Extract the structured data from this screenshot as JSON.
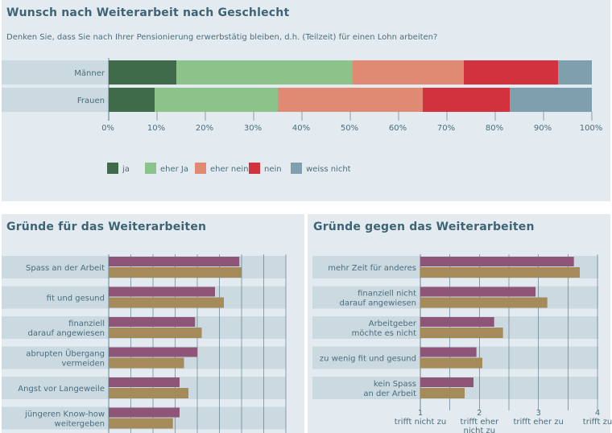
{
  "top": {
    "title": "Wunsch nach Weiterarbeit nach Geschlecht",
    "subtitle": "Denken Sie, dass Sie nach Ihrer Pensionierung erwerbstätig bleiben, d.h. (Teilzeit) für einen Lohn arbeiten?"
  },
  "left": {
    "title": "Gründe für das Weiterarbeiten"
  },
  "right": {
    "title": "Gründe gegen das Weiterarbeiten"
  },
  "colors": {
    "ja": "#3f6b4a",
    "eher_ja": "#8cc38a",
    "eher_nein": "#e08a73",
    "nein": "#d2313e",
    "weiss_nicht": "#7d9fae",
    "purple": "#8e5578",
    "gold": "#a58a5a",
    "band": "#cbd9e1",
    "axis": "#4a6d7c"
  },
  "chart_data": [
    {
      "type": "bar",
      "orientation": "horizontal",
      "stacked": true,
      "title": "Wunsch nach Weiterarbeit nach Geschlecht",
      "categories": [
        "Männer",
        "Frauen"
      ],
      "series": [
        {
          "name": "ja",
          "values": [
            14,
            9.5
          ]
        },
        {
          "name": "eher Ja",
          "values": [
            36.5,
            25.5
          ]
        },
        {
          "name": "eher nein",
          "values": [
            23,
            30
          ]
        },
        {
          "name": "nein",
          "values": [
            19.5,
            18
          ]
        },
        {
          "name": "weiss nicht",
          "values": [
            7,
            17
          ]
        }
      ],
      "x_ticks": [
        "0%",
        "10%",
        "20%",
        "30%",
        "40%",
        "50%",
        "60%",
        "70%",
        "80%",
        "90%",
        "100%"
      ],
      "xlim": [
        0,
        100
      ],
      "legend_position": "bottom"
    },
    {
      "type": "bar",
      "orientation": "horizontal",
      "title": "Gründe für das Weiterarbeiten",
      "categories": [
        "Spass an der Arbeit",
        "fit und gesund",
        "finanziell darauf angewiesen",
        "abrupten Übergang vermeiden",
        "Angst vor Langeweile",
        "jüngeren Know-how weitergeben"
      ],
      "category_labels": [
        [
          "Spass an der Arbeit"
        ],
        [
          "fit und gesund"
        ],
        [
          "finanziell",
          "darauf angewiesen"
        ],
        [
          "abrupten Übergang",
          "vermeiden"
        ],
        [
          "Angst vor Langeweile"
        ],
        [
          "jüngeren Know-how",
          "weitergeben"
        ]
      ],
      "series": [
        {
          "values": [
            3.95,
            3.4,
            2.95,
            3.0,
            2.6,
            2.6
          ]
        },
        {
          "values": [
            4.0,
            3.6,
            3.1,
            2.7,
            2.8,
            2.45
          ]
        }
      ],
      "xlim": [
        1,
        5
      ]
    },
    {
      "type": "bar",
      "orientation": "horizontal",
      "title": "Gründe gegen das Weiterarbeiten",
      "categories": [
        "mehr Zeit für anderes",
        "finanziell nicht darauf angewiesen",
        "Arbeitgeber möchte es nicht",
        "zu wenig fit und gesund",
        "kein Spass an der Arbeit"
      ],
      "category_labels": [
        [
          "mehr Zeit für anderes"
        ],
        [
          "finanziell nicht",
          "darauf angewiesen"
        ],
        [
          "Arbeitgeber",
          "möchte es nicht"
        ],
        [
          "zu wenig fit und gesund"
        ],
        [
          "kein Spass",
          "an der Arbeit"
        ]
      ],
      "series": [
        {
          "values": [
            3.6,
            2.95,
            2.25,
            1.95,
            1.9
          ]
        },
        {
          "values": [
            3.7,
            3.15,
            2.4,
            2.05,
            1.75
          ]
        }
      ],
      "xlim": [
        1,
        4
      ],
      "x_ticks": [
        {
          "num": "1",
          "label": [
            "trifft nicht zu"
          ]
        },
        {
          "num": "2",
          "label": [
            "trifft eher",
            "nicht zu"
          ]
        },
        {
          "num": "3",
          "label": [
            "trifft eher zu"
          ]
        },
        {
          "num": "4",
          "label": [
            "trifft zu"
          ]
        }
      ]
    }
  ]
}
